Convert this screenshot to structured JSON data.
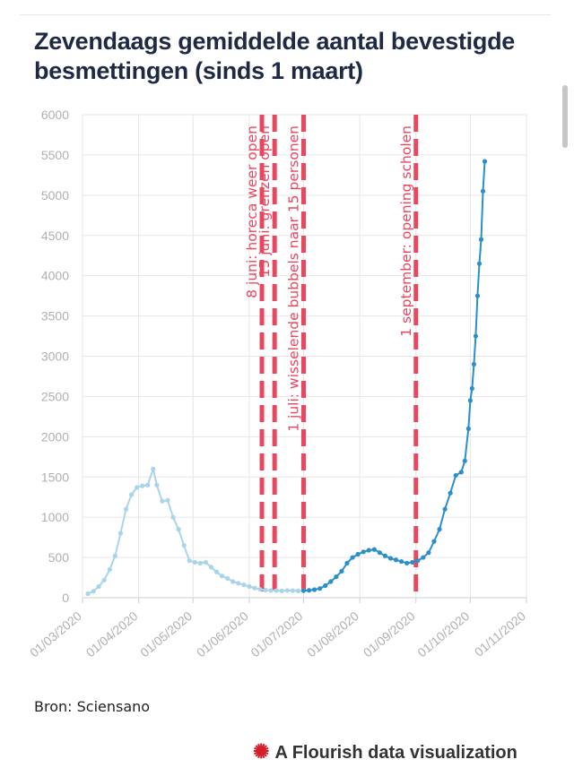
{
  "header": {
    "title": "Zevendaags gemiddelde aantal bevestigde besmettingen (sinds 1 maart)"
  },
  "footer": {
    "source": "Bron: Sciensano",
    "credit": "A Flourish data visualization"
  },
  "colors": {
    "line_current": "#2b8fc8",
    "line_faded": "#a9d4ec",
    "event_line": "#e8475f",
    "grid": "#e6e6e6",
    "axis_text": "#b0b0b0"
  },
  "chart_data": {
    "type": "line",
    "title": "Zevendaags gemiddelde aantal bevestigde besmettingen (sinds 1 maart)",
    "xlabel": "",
    "ylabel": "",
    "ylim": [
      0,
      6000
    ],
    "xlim": [
      "2020-03-01",
      "2020-11-01"
    ],
    "y_ticks": [
      0,
      500,
      1000,
      1500,
      2000,
      2500,
      3000,
      3500,
      4000,
      4500,
      5000,
      5500,
      6000
    ],
    "x_ticks": [
      "01/03/2020",
      "01/04/2020",
      "01/05/2020",
      "01/06/2020",
      "01/07/2020",
      "01/08/2020",
      "01/09/2020",
      "01/10/2020",
      "01/11/2020"
    ],
    "grid": true,
    "legend": "none",
    "series": [
      {
        "style": "faded",
        "points": [
          [
            "2020-03-04",
            50
          ],
          [
            "2020-03-07",
            80
          ],
          [
            "2020-03-10",
            140
          ],
          [
            "2020-03-13",
            220
          ],
          [
            "2020-03-16",
            350
          ],
          [
            "2020-03-19",
            520
          ],
          [
            "2020-03-22",
            800
          ],
          [
            "2020-03-25",
            1100
          ],
          [
            "2020-03-28",
            1280
          ],
          [
            "2020-03-31",
            1370
          ],
          [
            "2020-04-03",
            1390
          ],
          [
            "2020-04-06",
            1400
          ],
          [
            "2020-04-09",
            1600
          ],
          [
            "2020-04-11",
            1400
          ],
          [
            "2020-04-14",
            1200
          ],
          [
            "2020-04-17",
            1210
          ],
          [
            "2020-04-20",
            1000
          ],
          [
            "2020-04-23",
            850
          ],
          [
            "2020-04-26",
            650
          ],
          [
            "2020-04-29",
            460
          ],
          [
            "2020-05-02",
            440
          ],
          [
            "2020-05-05",
            430
          ],
          [
            "2020-05-08",
            440
          ],
          [
            "2020-05-11",
            380
          ],
          [
            "2020-05-14",
            320
          ],
          [
            "2020-05-17",
            270
          ],
          [
            "2020-05-20",
            240
          ],
          [
            "2020-05-23",
            200
          ],
          [
            "2020-05-26",
            180
          ],
          [
            "2020-05-29",
            160
          ],
          [
            "2020-06-01",
            140
          ],
          [
            "2020-06-04",
            120
          ],
          [
            "2020-06-07",
            105
          ],
          [
            "2020-06-10",
            95
          ],
          [
            "2020-06-13",
            90
          ],
          [
            "2020-06-16",
            88
          ],
          [
            "2020-06-19",
            85
          ],
          [
            "2020-06-22",
            90
          ],
          [
            "2020-06-25",
            88
          ],
          [
            "2020-06-28",
            85
          ],
          [
            "2020-07-01",
            88
          ]
        ]
      },
      {
        "style": "current",
        "points": [
          [
            "2020-07-01",
            88
          ],
          [
            "2020-07-04",
            92
          ],
          [
            "2020-07-07",
            100
          ],
          [
            "2020-07-10",
            115
          ],
          [
            "2020-07-13",
            150
          ],
          [
            "2020-07-16",
            200
          ],
          [
            "2020-07-19",
            260
          ],
          [
            "2020-07-22",
            330
          ],
          [
            "2020-07-25",
            430
          ],
          [
            "2020-07-28",
            500
          ],
          [
            "2020-07-31",
            540
          ],
          [
            "2020-08-03",
            570
          ],
          [
            "2020-08-06",
            590
          ],
          [
            "2020-08-09",
            600
          ],
          [
            "2020-08-12",
            560
          ],
          [
            "2020-08-15",
            520
          ],
          [
            "2020-08-18",
            490
          ],
          [
            "2020-08-21",
            470
          ],
          [
            "2020-08-24",
            450
          ],
          [
            "2020-08-27",
            430
          ],
          [
            "2020-08-30",
            440
          ],
          [
            "2020-09-02",
            460
          ],
          [
            "2020-09-05",
            500
          ],
          [
            "2020-09-08",
            560
          ],
          [
            "2020-09-11",
            700
          ],
          [
            "2020-09-14",
            850
          ],
          [
            "2020-09-17",
            1100
          ],
          [
            "2020-09-20",
            1300
          ],
          [
            "2020-09-23",
            1520
          ],
          [
            "2020-09-26",
            1560
          ],
          [
            "2020-09-28",
            1700
          ],
          [
            "2020-09-30",
            2100
          ],
          [
            "2020-10-01",
            2450
          ],
          [
            "2020-10-02",
            2600
          ],
          [
            "2020-10-03",
            2900
          ],
          [
            "2020-10-04",
            3250
          ],
          [
            "2020-10-05",
            3750
          ],
          [
            "2020-10-06",
            4150
          ],
          [
            "2020-10-07",
            4450
          ],
          [
            "2020-10-08",
            5050
          ],
          [
            "2020-10-09",
            5420
          ]
        ]
      }
    ],
    "events": [
      {
        "date": "2020-06-08",
        "label": "8 juni: horeca weer open"
      },
      {
        "date": "2020-06-15",
        "label": "15 juni: grenzen open"
      },
      {
        "date": "2020-07-01",
        "label": "1 juli: wisselende bubbels naar 15 personen"
      },
      {
        "date": "2020-09-01",
        "label": "1 september: opening scholen"
      }
    ]
  }
}
